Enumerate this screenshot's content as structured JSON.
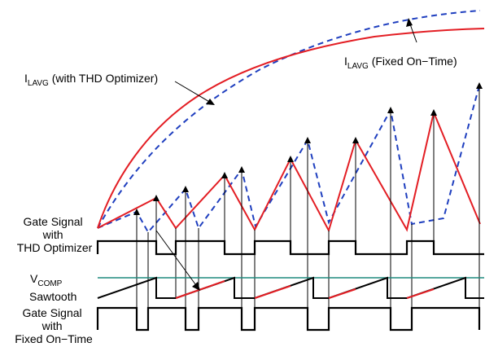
{
  "labels": {
    "ilavg_thd": {
      "main": "I",
      "sub": "LAVG",
      "rest": " (with THD Optimizer)"
    },
    "ilavg_fixed": {
      "main": "I",
      "sub": "LAVG",
      "rest": " (Fixed On−Time)"
    },
    "gate_thd": [
      "Gate Signal",
      "with",
      "THD Optimizer"
    ],
    "vcomp": {
      "main": "V",
      "sub": "COMP"
    },
    "sawtooth": "Sawtooth",
    "gate_fixed": [
      "Gate Signal",
      "with",
      "Fixed On−Time"
    ]
  },
  "colors": {
    "thd_optimizer": "#e31e24",
    "fixed_on_time": "#1f3fbf",
    "vcomp": "#1f8a7e",
    "signal": "#000000"
  }
}
